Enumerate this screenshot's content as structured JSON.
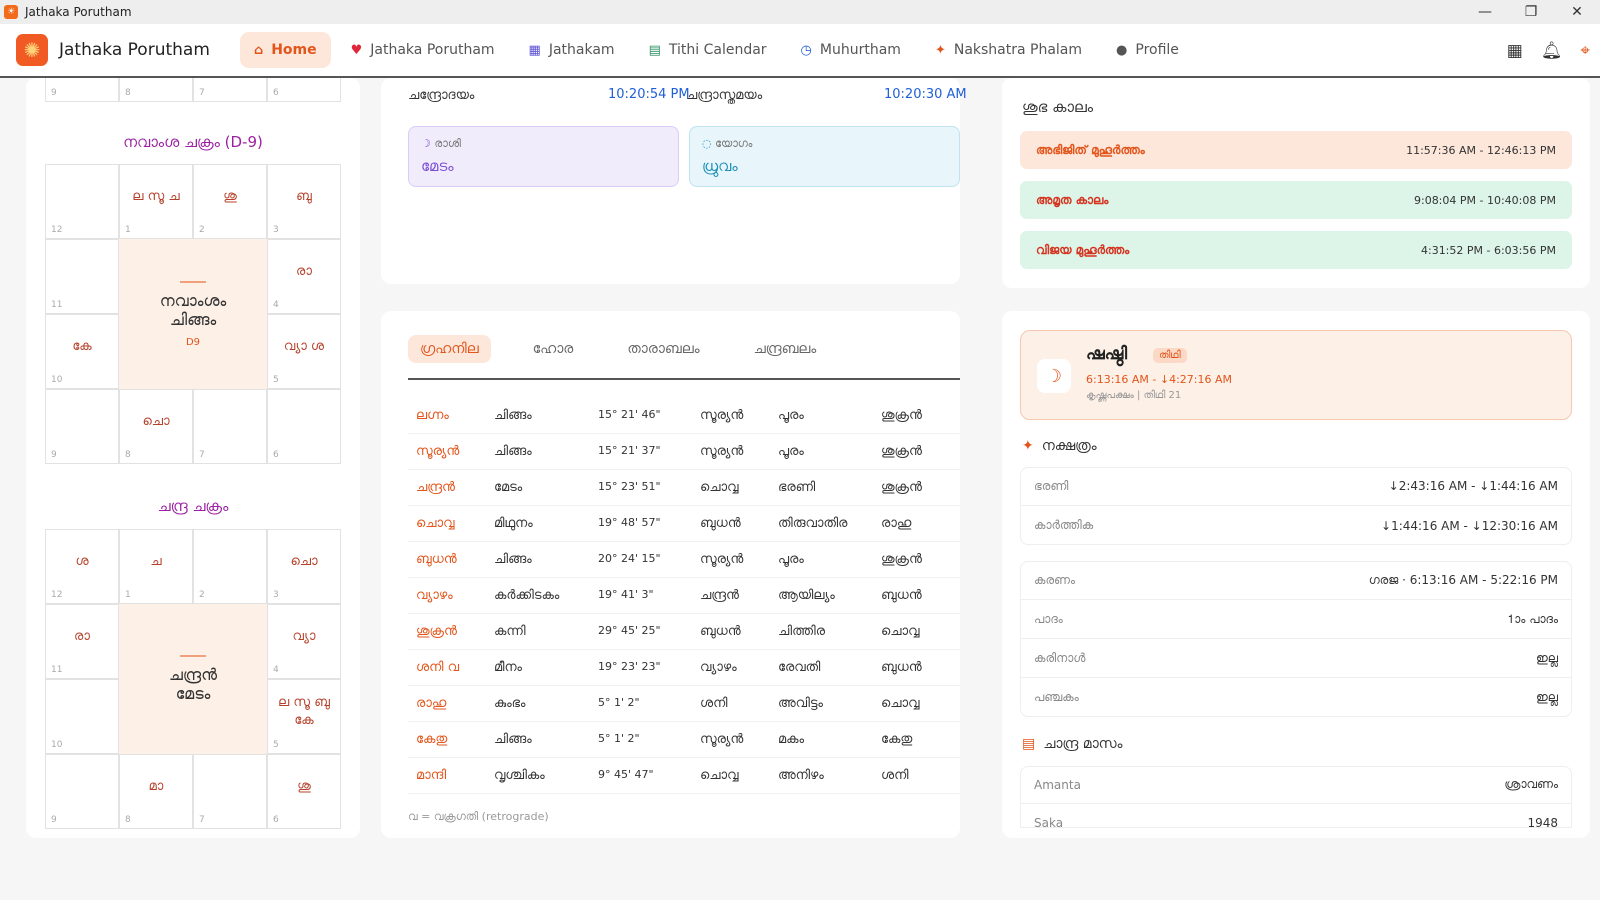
{
  "window": {
    "title": "Jathaka Porutham",
    "controls": [
      "—",
      "❐",
      "✕"
    ]
  },
  "nav": {
    "brand": "Jathaka Porutham",
    "items": [
      {
        "label": "Home",
        "icon": "home-icon",
        "glyph": "⌂"
      },
      {
        "label": "Jathaka Porutham",
        "icon": "heart-icon",
        "glyph": "♥"
      },
      {
        "label": "Jathakam",
        "icon": "grid-icon",
        "glyph": "▦"
      },
      {
        "label": "Tithi Calendar",
        "icon": "calendar-icon",
        "glyph": "▤"
      },
      {
        "label": "Muhurtham",
        "icon": "clock-icon",
        "glyph": "◷"
      },
      {
        "label": "Nakshatra Phalam",
        "icon": "sparkle-icon",
        "glyph": "✦"
      },
      {
        "label": "Profile",
        "icon": "user-icon",
        "glyph": "●"
      }
    ]
  },
  "rasi_bottom_nums": [
    "9",
    "8",
    "7",
    "6"
  ],
  "navamsa": {
    "title": "നവാംശ ചക്രം (D-9)",
    "center_title": "നവാംശം\nചിങ്ങം",
    "center_sub": "D9",
    "cells": [
      {
        "num": "12",
        "planets": ""
      },
      {
        "num": "1",
        "planets": "ല സൂ ച"
      },
      {
        "num": "2",
        "planets": "ശു"
      },
      {
        "num": "3",
        "planets": "ബു"
      },
      {
        "num": "11",
        "planets": ""
      },
      {
        "num": "4",
        "planets": "രാ"
      },
      {
        "num": "10",
        "planets": "കേ"
      },
      {
        "num": "5",
        "planets": "വ്യാ ശ"
      },
      {
        "num": "9",
        "planets": ""
      },
      {
        "num": "8",
        "planets": "ചൊ"
      },
      {
        "num": "7",
        "planets": ""
      },
      {
        "num": "6",
        "planets": ""
      }
    ]
  },
  "chandra": {
    "title": "ചന്ദ്ര ചക്രം",
    "center_title": "ചന്ദ്രൻ\nമേടം",
    "cells": [
      {
        "num": "12",
        "planets": "ശ"
      },
      {
        "num": "1",
        "planets": "ച"
      },
      {
        "num": "2",
        "planets": ""
      },
      {
        "num": "3",
        "planets": "ചൊ"
      },
      {
        "num": "11",
        "planets": "രാ"
      },
      {
        "num": "4",
        "planets": "വ്യാ"
      },
      {
        "num": "10",
        "planets": ""
      },
      {
        "num": "5",
        "planets": "ല സൂ ബു\nകേ"
      },
      {
        "num": "9",
        "planets": ""
      },
      {
        "num": "8",
        "planets": "മാ"
      },
      {
        "num": "7",
        "planets": ""
      },
      {
        "num": "6",
        "planets": "ശു"
      }
    ]
  },
  "moon_times": {
    "rise_label": "ചന്ദ്രോദയം",
    "rise_value": "10:20:54 PM",
    "set_label": "ചന്ദ്രാസ്തമയം",
    "set_value": "10:20:30 AM"
  },
  "rasi_pill": {
    "icon": "moon-icon",
    "label": "രാശി",
    "value": "മേടം"
  },
  "yoga_pill": {
    "icon": "drop-icon",
    "label": "യോഗം",
    "value": "ധ്രുവം"
  },
  "tabs": [
    "ഗ്രഹനില",
    "ഹോര",
    "താരാബലം",
    "ചന്ദ്രബലം"
  ],
  "planets": [
    [
      "ലഗ്നം",
      "ചിങ്ങം",
      "15° 21' 46\"",
      "സൂര്യൻ",
      "പൂരം",
      "ശുക്രൻ"
    ],
    [
      "സൂര്യൻ",
      "ചിങ്ങം",
      "15° 21' 37\"",
      "സൂര്യൻ",
      "പൂരം",
      "ശുക്രൻ"
    ],
    [
      "ചന്ദ്രൻ",
      "മേടം",
      "15° 23' 51\"",
      "ചൊവ്വ",
      "ഭരണി",
      "ശുക്രൻ"
    ],
    [
      "ചൊവ്വ",
      "മിഥുനം",
      "19° 48' 57\"",
      "ബുധൻ",
      "തിരുവാതിര",
      "രാഹു"
    ],
    [
      "ബുധൻ",
      "ചിങ്ങം",
      "20° 24' 15\"",
      "സൂര്യൻ",
      "പൂരം",
      "ശുക്രൻ"
    ],
    [
      "വ്യാഴം",
      "കർക്കിടകം",
      "19° 41' 3\"",
      "ചന്ദ്രൻ",
      "ആയില്യം",
      "ബുധൻ"
    ],
    [
      "ശുക്രൻ",
      "കന്നി",
      "29° 45' 25\"",
      "ബുധൻ",
      "ചിത്തിര",
      "ചൊവ്വ"
    ],
    [
      "ശനി വ",
      "മീനം",
      "19° 23' 23\"",
      "വ്യാഴം",
      "രേവതി",
      "ബുധൻ"
    ],
    [
      "രാഹു",
      "കുംഭം",
      "5° 1' 2\"",
      "ശനി",
      "അവിട്ടം",
      "ചൊവ്വ"
    ],
    [
      "കേതു",
      "ചിങ്ങം",
      "5° 1' 2\"",
      "സൂര്യൻ",
      "മകം",
      "കേതു"
    ],
    [
      "മാന്ദി",
      "വൃശ്ചികം",
      "9° 45' 47\"",
      "ചൊവ്വ",
      "അനിഴം",
      "ശനി"
    ]
  ],
  "retro_note": "വ = വക്രഗതി (retrograde)",
  "shubha": {
    "title": "ശുഭ കാലം",
    "slots": [
      {
        "name": "അഭിജിത് മുഹൂർത്തം",
        "range": "11:57:36 AM - 12:46:13 PM",
        "bg": "#fde7db",
        "fg": "#e2551b"
      },
      {
        "name": "അമൃത കാലം",
        "range": "9:08:04 PM - 10:40:08 PM",
        "bg": "#dcf5e8",
        "fg": "#d6331f"
      },
      {
        "name": "വിജയ മുഹൂർത്തം",
        "range": "4:31:52 PM - 6:03:56 PM",
        "bg": "#dcf5e8",
        "fg": "#d6331f"
      }
    ]
  },
  "tithi": {
    "name": "ഷഷ്ഠി",
    "badge": "തിഥി",
    "range": "6:13:16 AM - ↓4:27:16 AM",
    "sub": "കൃഷ്ണപക്ഷം | തിഥി 21"
  },
  "nakshatra": {
    "title": "നക്ഷത്രം",
    "rows": [
      {
        "k": "ഭരണി",
        "v": "↓2:43:16 AM - ↓1:44:16 AM"
      },
      {
        "k": "കാർത്തിക",
        "v": "↓1:44:16 AM - ↓12:30:16 AM"
      }
    ]
  },
  "details": [
    {
      "k": "കരണം",
      "v": "ഗരജ · 6:13:16 AM - 5:22:16 PM"
    },
    {
      "k": "പാദം",
      "v": "1ാം പാദം"
    },
    {
      "k": "കരിനാൾ",
      "v": "ഇല്ല"
    },
    {
      "k": "പഞ്ചകം",
      "v": "ഇല്ല"
    }
  ],
  "chandra_masam": {
    "title": "ചാന്ദ്ര മാസം",
    "rows": [
      {
        "k": "Amanta",
        "v": "ശ്രാവണം"
      },
      {
        "k": "Saka",
        "v": "1948"
      }
    ]
  },
  "colors": {
    "accent": "#e2551b",
    "chart_title": "#9b1fa3",
    "rasi_pill": "#f1ecfb",
    "yoga_pill": "#e8f6fb"
  }
}
